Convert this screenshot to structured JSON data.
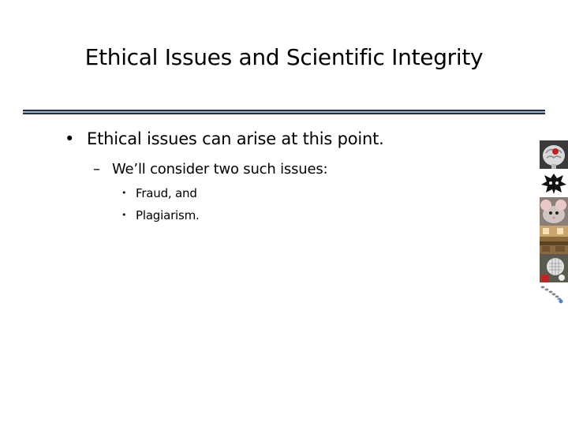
{
  "slide": {
    "title": "Ethical Issues and Scientific Integrity",
    "bullets": {
      "level1": {
        "marker": "•",
        "text": "Ethical issues can arise at this point."
      },
      "level2": {
        "marker": "–",
        "text": "We’ll consider two such issues:"
      },
      "level3": [
        {
          "marker": "•",
          "text": "Fraud, and"
        },
        {
          "marker": "•",
          "text": "Plagiarism."
        }
      ]
    }
  },
  "colors": {
    "rule_dark": "#1f2d3f",
    "rule_light": "#9fb0c8",
    "text": "#000000",
    "background": "#ffffff"
  },
  "thumbnails": [
    {
      "icon": "brain-icon"
    },
    {
      "icon": "inkblot-icon"
    },
    {
      "icon": "mouse-icon"
    },
    {
      "icon": "lab-room-icon"
    },
    {
      "icon": "robot-head-icon"
    },
    {
      "icon": "chain-icon"
    }
  ]
}
